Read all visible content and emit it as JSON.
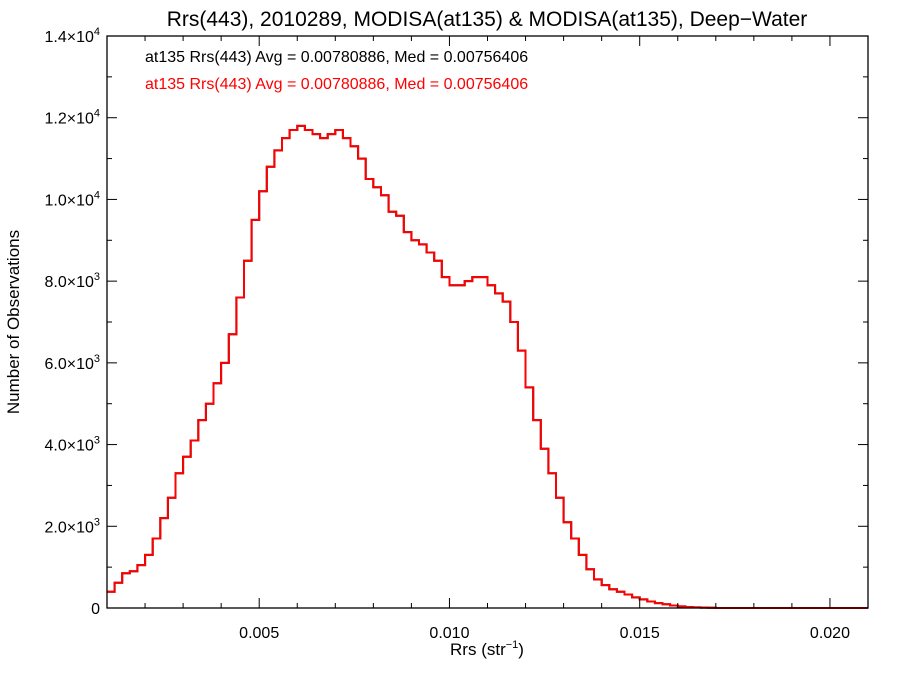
{
  "chart_data": {
    "type": "line",
    "step": true,
    "title": "Rrs(443), 2010289, MODISA(at135) & MODISA(at135), Deep−Water",
    "xlabel": "Rrs (str",
    "xlabel_sup": "−1",
    "xlabel_end": ")",
    "ylabel": "Number of Observations",
    "xlim": [
      0.001,
      0.021
    ],
    "ylim": [
      0,
      14000
    ],
    "xticks": [
      {
        "v": 0.005,
        "label": "0.005"
      },
      {
        "v": 0.01,
        "label": "0.010"
      },
      {
        "v": 0.015,
        "label": "0.015"
      },
      {
        "v": 0.02,
        "label": "0.020"
      }
    ],
    "yticks": [
      {
        "v": 0,
        "base": "0",
        "exp": ""
      },
      {
        "v": 2000,
        "base": "2.0×10",
        "exp": "3"
      },
      {
        "v": 4000,
        "base": "4.0×10",
        "exp": "3"
      },
      {
        "v": 6000,
        "base": "6.0×10",
        "exp": "3"
      },
      {
        "v": 8000,
        "base": "8.0×10",
        "exp": "3"
      },
      {
        "v": 10000,
        "base": "1.0×10",
        "exp": "4"
      },
      {
        "v": 12000,
        "base": "1.2×10",
        "exp": "4"
      },
      {
        "v": 14000,
        "base": "1.4×10",
        "exp": "4"
      }
    ],
    "annotations": [
      {
        "text": "at135 Rrs(443) Avg = 0.00780886, Med = 0.00756406",
        "color": "#000000"
      },
      {
        "text": "at135 Rrs(443) Avg = 0.00780886, Med = 0.00756406",
        "color": "#ff0000"
      }
    ],
    "grid": false,
    "series": [
      {
        "color": "#000000",
        "x": [
          0.001,
          0.0012,
          0.0014,
          0.0016,
          0.0018,
          0.002,
          0.0022,
          0.0024,
          0.0026,
          0.0028,
          0.003,
          0.0032,
          0.0034,
          0.0036,
          0.0038,
          0.004,
          0.0042,
          0.0044,
          0.0046,
          0.0048,
          0.005,
          0.0052,
          0.0054,
          0.0056,
          0.0058,
          0.006,
          0.0062,
          0.0064,
          0.0066,
          0.0068,
          0.007,
          0.0072,
          0.0074,
          0.0076,
          0.0078,
          0.008,
          0.0082,
          0.0084,
          0.0086,
          0.0088,
          0.009,
          0.0092,
          0.0094,
          0.0096,
          0.0098,
          0.01,
          0.0102,
          0.0104,
          0.0106,
          0.0108,
          0.011,
          0.0112,
          0.0114,
          0.0116,
          0.0118,
          0.012,
          0.0122,
          0.0124,
          0.0126,
          0.0128,
          0.013,
          0.0132,
          0.0134,
          0.0136,
          0.0138,
          0.014,
          0.0142,
          0.0144,
          0.0146,
          0.0148,
          0.015,
          0.0152,
          0.0154,
          0.0156,
          0.0158,
          0.016,
          0.0162,
          0.0164,
          0.0166,
          0.0168,
          0.017,
          0.0172,
          0.0174,
          0.0176,
          0.0178,
          0.018,
          0.0185,
          0.019,
          0.02,
          0.021
        ],
        "y": [
          400,
          620,
          850,
          900,
          1050,
          1300,
          1700,
          2200,
          2700,
          3300,
          3700,
          4100,
          4600,
          5000,
          5500,
          6000,
          6700,
          7600,
          8500,
          9500,
          10200,
          10800,
          11200,
          11500,
          11700,
          11800,
          11700,
          11600,
          11500,
          11600,
          11700,
          11500,
          11300,
          11000,
          10500,
          10300,
          10100,
          9700,
          9600,
          9200,
          9000,
          8900,
          8700,
          8500,
          8100,
          7900,
          7900,
          8000,
          8100,
          8100,
          7900,
          7700,
          7500,
          7000,
          6300,
          5400,
          4600,
          3900,
          3300,
          2700,
          2100,
          1700,
          1300,
          950,
          700,
          560,
          460,
          400,
          330,
          260,
          210,
          160,
          120,
          90,
          60,
          40,
          25,
          15,
          10,
          5,
          0,
          0,
          0,
          0,
          0,
          0,
          0,
          0,
          0,
          0
        ]
      },
      {
        "color": "#ff0000",
        "x": [
          0.001,
          0.0012,
          0.0014,
          0.0016,
          0.0018,
          0.002,
          0.0022,
          0.0024,
          0.0026,
          0.0028,
          0.003,
          0.0032,
          0.0034,
          0.0036,
          0.0038,
          0.004,
          0.0042,
          0.0044,
          0.0046,
          0.0048,
          0.005,
          0.0052,
          0.0054,
          0.0056,
          0.0058,
          0.006,
          0.0062,
          0.0064,
          0.0066,
          0.0068,
          0.007,
          0.0072,
          0.0074,
          0.0076,
          0.0078,
          0.008,
          0.0082,
          0.0084,
          0.0086,
          0.0088,
          0.009,
          0.0092,
          0.0094,
          0.0096,
          0.0098,
          0.01,
          0.0102,
          0.0104,
          0.0106,
          0.0108,
          0.011,
          0.0112,
          0.0114,
          0.0116,
          0.0118,
          0.012,
          0.0122,
          0.0124,
          0.0126,
          0.0128,
          0.013,
          0.0132,
          0.0134,
          0.0136,
          0.0138,
          0.014,
          0.0142,
          0.0144,
          0.0146,
          0.0148,
          0.015,
          0.0152,
          0.0154,
          0.0156,
          0.0158,
          0.016,
          0.0162,
          0.0164,
          0.0166,
          0.0168,
          0.017,
          0.0172,
          0.0174,
          0.0176,
          0.0178,
          0.018,
          0.0185,
          0.019,
          0.02,
          0.021
        ],
        "y": [
          400,
          620,
          850,
          900,
          1050,
          1300,
          1700,
          2200,
          2700,
          3300,
          3700,
          4100,
          4600,
          5000,
          5500,
          6000,
          6700,
          7600,
          8500,
          9500,
          10200,
          10800,
          11200,
          11500,
          11700,
          11800,
          11700,
          11600,
          11500,
          11600,
          11700,
          11500,
          11300,
          11000,
          10500,
          10300,
          10100,
          9700,
          9600,
          9200,
          9000,
          8900,
          8700,
          8500,
          8100,
          7900,
          7900,
          8000,
          8100,
          8100,
          7900,
          7700,
          7500,
          7000,
          6300,
          5400,
          4600,
          3900,
          3300,
          2700,
          2100,
          1700,
          1300,
          950,
          700,
          560,
          460,
          400,
          330,
          260,
          210,
          160,
          120,
          90,
          60,
          40,
          25,
          15,
          10,
          5,
          0,
          0,
          0,
          0,
          0,
          0,
          0,
          0,
          0,
          0
        ]
      }
    ]
  }
}
